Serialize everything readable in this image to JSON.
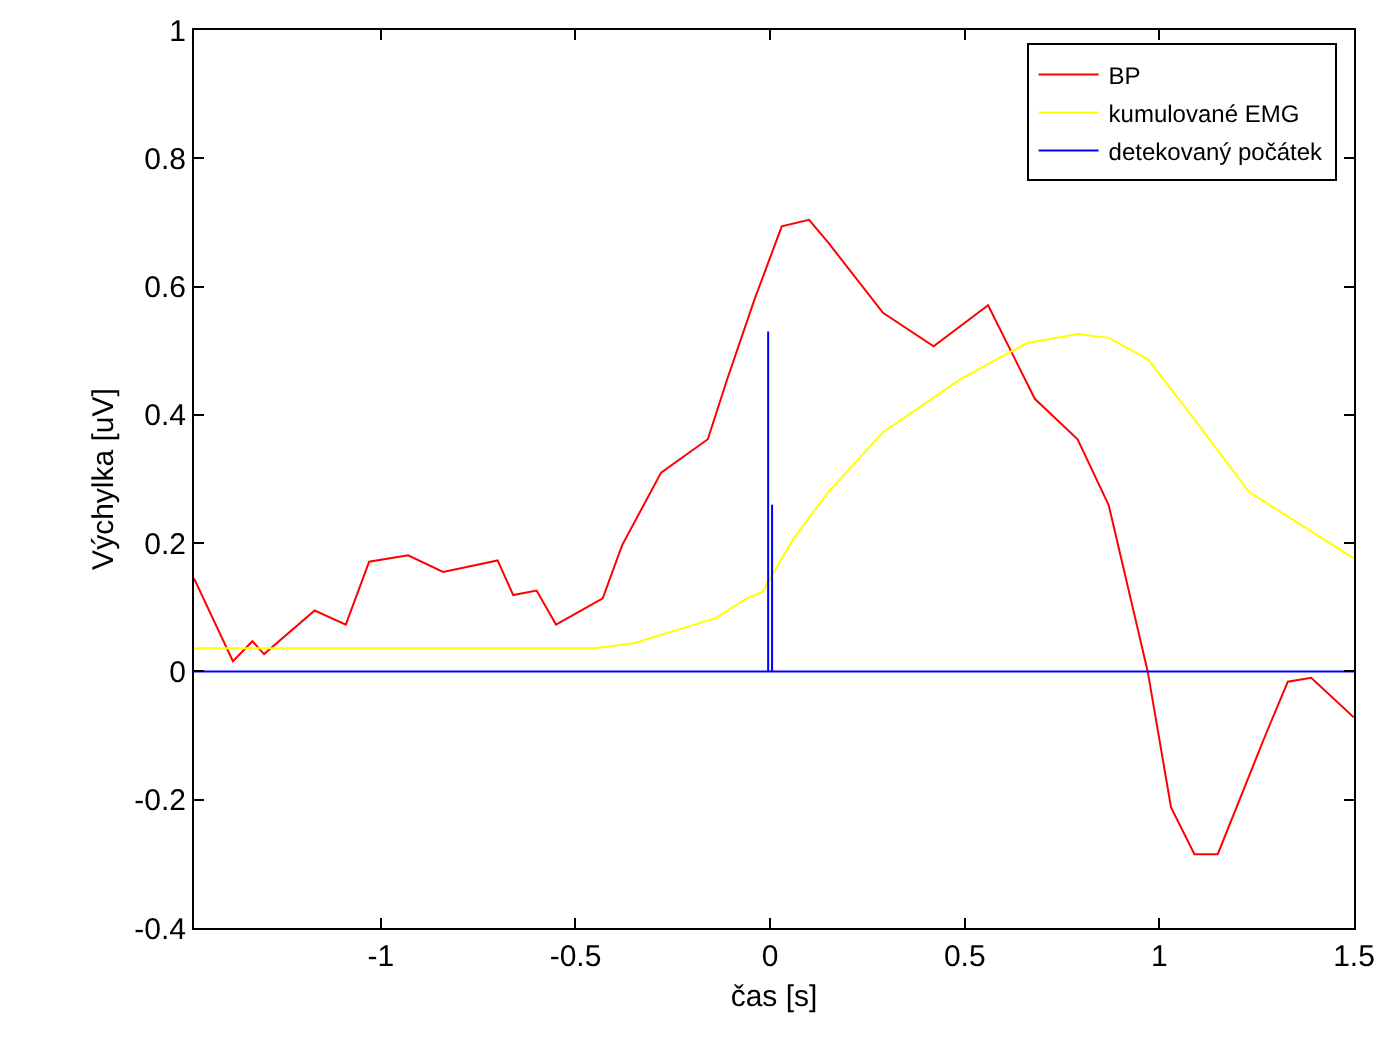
{
  "chart_data": {
    "type": "line",
    "xlabel": "čas [s]",
    "ylabel": "Výchylka [uV]",
    "xlim": [
      -1.48,
      1.5
    ],
    "xticks": [
      -1,
      -0.5,
      0,
      0.5,
      1,
      1.5
    ],
    "ylim": [
      -0.4,
      1
    ],
    "yticks": [
      -0.4,
      -0.2,
      0,
      0.2,
      0.4,
      0.6,
      0.8,
      1
    ],
    "grid": false,
    "legend": "top right",
    "marker": "none",
    "line_style": "solid",
    "series": [
      {
        "name": "BP",
        "color": "#ff0000",
        "x": [
          -1.48,
          -1.38,
          -1.33,
          -1.3,
          -1.17,
          -1.09,
          -1.03,
          -0.93,
          -0.84,
          -0.7,
          -0.66,
          -0.6,
          -0.55,
          -0.43,
          -0.38,
          -0.28,
          -0.16,
          -0.11,
          -0.04,
          0.03,
          0.1,
          0.15,
          0.29,
          0.42,
          0.56,
          0.68,
          0.79,
          0.87,
          0.97,
          1.03,
          1.09,
          1.15,
          1.27,
          1.33,
          1.39,
          1.5
        ],
        "values": [
          0.145,
          0.016,
          0.047,
          0.027,
          0.095,
          0.073,
          0.171,
          0.181,
          0.155,
          0.173,
          0.119,
          0.126,
          0.073,
          0.114,
          0.197,
          0.31,
          0.362,
          0.456,
          0.58,
          0.694,
          0.704,
          0.668,
          0.559,
          0.507,
          0.571,
          0.425,
          0.362,
          0.259,
          0,
          -0.212,
          -0.285,
          -0.285,
          -0.103,
          -0.016,
          -0.01,
          -0.072
        ]
      },
      {
        "name": "kumulované EMG",
        "color": "#ffff00",
        "x": [
          -1.48,
          -0.45,
          -0.35,
          -0.14,
          -0.06,
          -0.02,
          0.06,
          0.15,
          0.29,
          0.49,
          0.66,
          0.79,
          0.87,
          0.97,
          1.09,
          1.23,
          1.5
        ],
        "values": [
          0.036,
          0.036,
          0.044,
          0.083,
          0.114,
          0.124,
          0.207,
          0.28,
          0.373,
          0.456,
          0.512,
          0.526,
          0.52,
          0.487,
          0.393,
          0.28,
          0.176
        ]
      },
      {
        "name": "detekovaný počátek",
        "color": "#0000ff",
        "x": [
          -1.48,
          -0.005,
          -0.005,
          -0.005,
          0.005,
          0.005,
          0.005,
          1.5
        ],
        "values": [
          0,
          0,
          0.53,
          0,
          0,
          0.26,
          0,
          0
        ]
      }
    ]
  }
}
